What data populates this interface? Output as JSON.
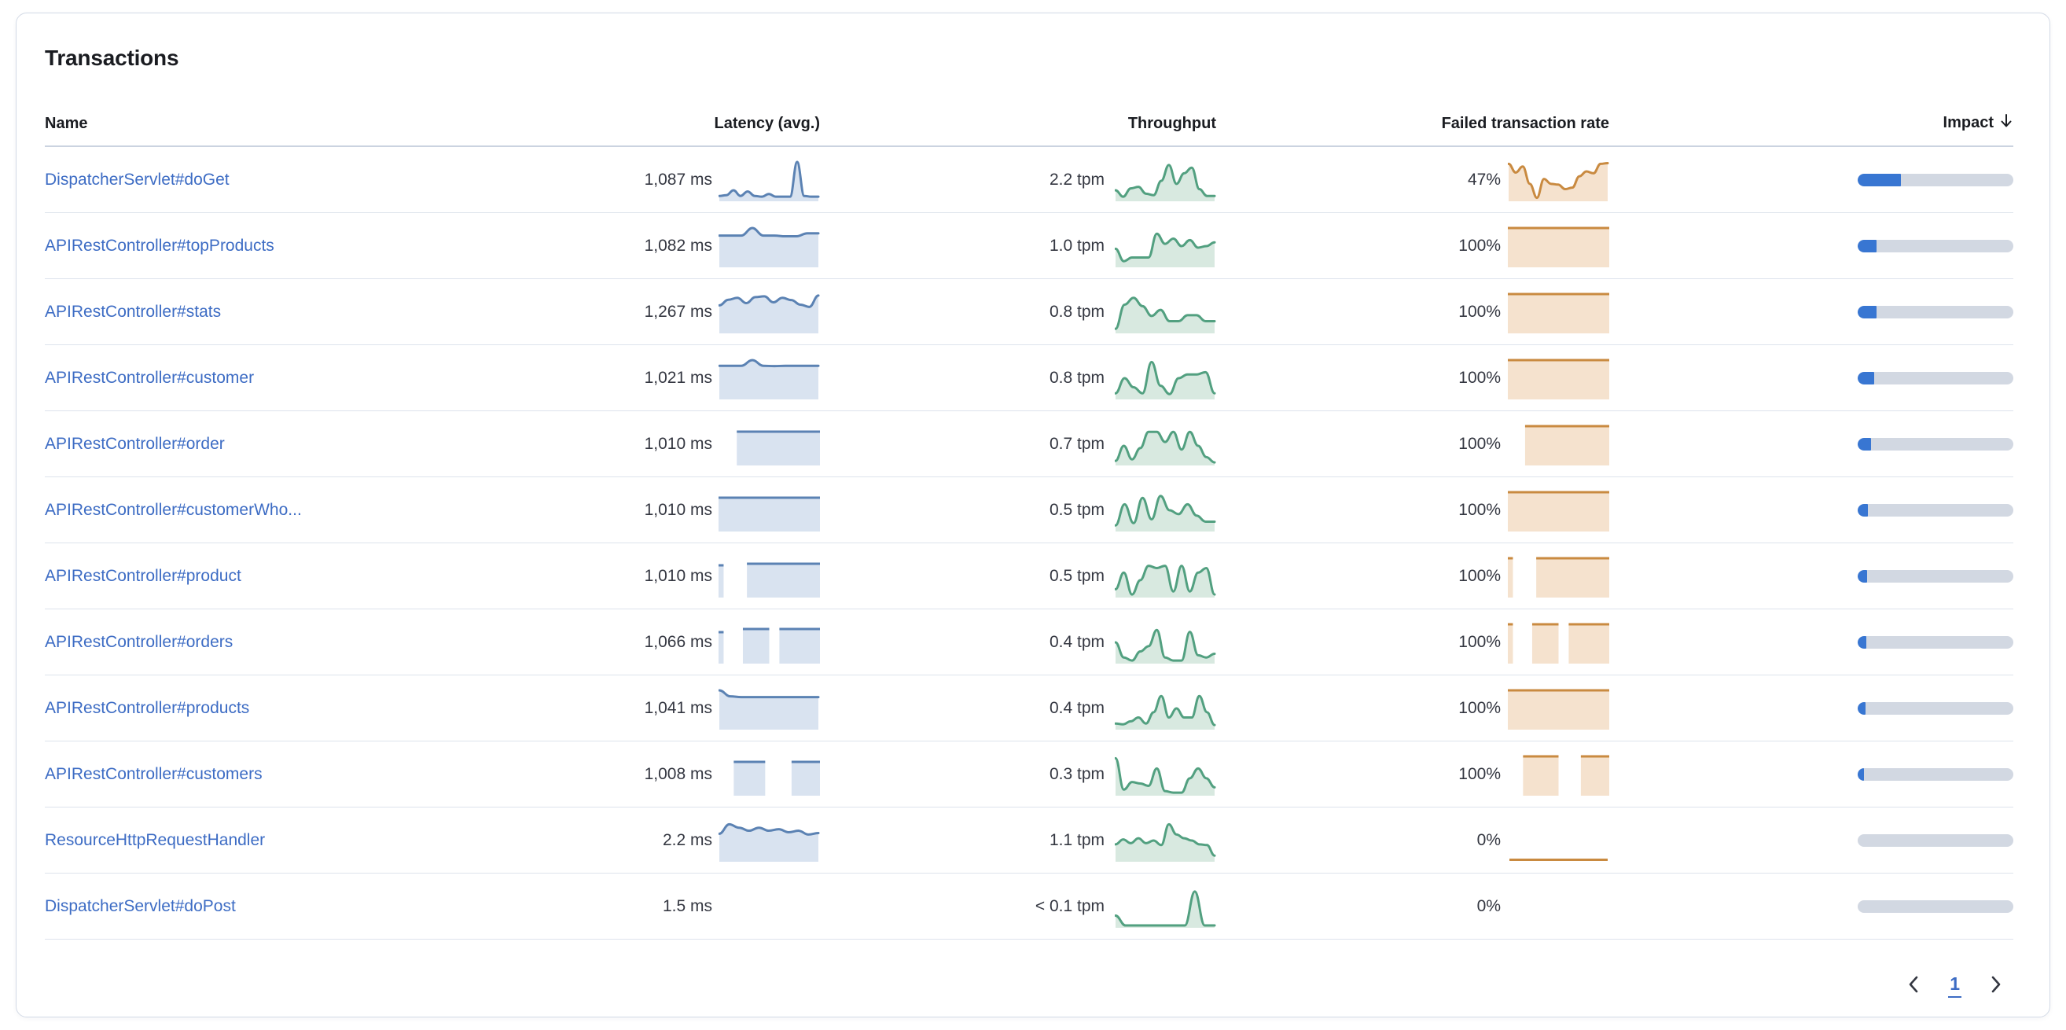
{
  "panel": {
    "title": "Transactions"
  },
  "table": {
    "columns": {
      "name": "Name",
      "latency": "Latency (avg.)",
      "throughput": "Throughput",
      "failed_rate": "Failed transaction rate",
      "impact": "Impact"
    },
    "sort": {
      "column": "Impact",
      "direction": "desc"
    },
    "rows": [
      {
        "name": "DispatcherServlet#doGet",
        "latency": "1,087 ms",
        "latency_spark": {
          "type": "line",
          "points": [
            0.1,
            0.12,
            0.25,
            0.1,
            0.22,
            0.1,
            0.08,
            0.15,
            0.08,
            0.08,
            0.08,
            1.0,
            0.1,
            0.08,
            0.08
          ]
        },
        "throughput": "2.2 tpm",
        "throughput_spark": {
          "type": "line",
          "points": [
            0.25,
            0.08,
            0.3,
            0.34,
            0.16,
            0.12,
            0.5,
            0.92,
            0.42,
            0.7,
            0.85,
            0.28,
            0.1,
            0.1
          ]
        },
        "failed_rate": "47%",
        "failed_spark": {
          "type": "line",
          "points": [
            0.95,
            0.72,
            0.88,
            0.42,
            0.05,
            0.55,
            0.42,
            0.4,
            0.28,
            0.32,
            0.62,
            0.75,
            0.7,
            0.95,
            0.97
          ]
        },
        "impact": 0.28
      },
      {
        "name": "APIRestController#topProducts",
        "latency": "1,082 ms",
        "latency_spark": {
          "type": "line",
          "points": [
            0.8,
            0.8,
            0.8,
            1.0,
            0.8,
            0.8,
            0.78,
            0.78,
            0.86,
            0.86
          ]
        },
        "throughput": "1.0 tpm",
        "throughput_spark": {
          "type": "line",
          "points": [
            0.45,
            0.12,
            0.22,
            0.22,
            0.22,
            0.85,
            0.58,
            0.72,
            0.52,
            0.68,
            0.48,
            0.52,
            0.62
          ]
        },
        "failed_rate": "100%",
        "failed_spark": {
          "type": "blocks",
          "segments": [
            [
              0,
              1,
              1
            ]
          ]
        },
        "impact": 0.12
      },
      {
        "name": "APIRestController#stats",
        "latency": "1,267 ms",
        "latency_spark": {
          "type": "line",
          "points": [
            0.7,
            0.85,
            0.9,
            0.76,
            0.92,
            0.94,
            0.78,
            0.9,
            0.84,
            0.72,
            0.66,
            0.96
          ]
        },
        "throughput": "0.8 tpm",
        "throughput_spark": {
          "type": "line",
          "points": [
            0.08,
            0.72,
            0.9,
            0.68,
            0.42,
            0.58,
            0.28,
            0.28,
            0.44,
            0.44,
            0.28,
            0.28
          ]
        },
        "failed_rate": "100%",
        "failed_spark": {
          "type": "blocks",
          "segments": [
            [
              0,
              1,
              1
            ]
          ]
        },
        "impact": 0.12
      },
      {
        "name": "APIRestController#customer",
        "latency": "1,021 ms",
        "latency_spark": {
          "type": "line",
          "points": [
            0.85,
            0.85,
            0.85,
            1.0,
            0.85,
            0.84,
            0.85,
            0.85,
            0.85,
            0.85
          ]
        },
        "throughput": "0.8 tpm",
        "throughput_spark": {
          "type": "line",
          "points": [
            0.12,
            0.52,
            0.28,
            0.12,
            0.95,
            0.32,
            0.1,
            0.52,
            0.62,
            0.62,
            0.68,
            0.12
          ]
        },
        "failed_rate": "100%",
        "failed_spark": {
          "type": "blocks",
          "segments": [
            [
              0,
              1,
              1
            ]
          ]
        },
        "impact": 0.105
      },
      {
        "name": "APIRestController#order",
        "latency": "1,010 ms",
        "latency_spark": {
          "type": "blocks",
          "segments": [
            [
              0.18,
              1,
              0.86
            ]
          ]
        },
        "throughput": "0.7 tpm",
        "throughput_spark": {
          "type": "line",
          "points": [
            0.08,
            0.48,
            0.12,
            0.42,
            0.85,
            0.85,
            0.58,
            0.85,
            0.38,
            0.85,
            0.48,
            0.18,
            0.04
          ]
        },
        "failed_rate": "100%",
        "failed_spark": {
          "type": "blocks",
          "segments": [
            [
              0.17,
              1,
              1
            ]
          ]
        },
        "impact": 0.085
      },
      {
        "name": "APIRestController#customerWho...",
        "latency": "1,010 ms",
        "latency_spark": {
          "type": "blocks",
          "segments": [
            [
              0,
              1,
              0.86
            ]
          ]
        },
        "throughput": "0.5 tpm",
        "throughput_spark": {
          "type": "line",
          "points": [
            0.12,
            0.68,
            0.18,
            0.85,
            0.28,
            0.9,
            0.52,
            0.42,
            0.68,
            0.38,
            0.22,
            0.22
          ]
        },
        "failed_rate": "100%",
        "failed_spark": {
          "type": "blocks",
          "segments": [
            [
              0,
              1,
              1
            ]
          ]
        },
        "impact": 0.065
      },
      {
        "name": "APIRestController#product",
        "latency": "1,010 ms",
        "latency_spark": {
          "type": "blocks",
          "segments": [
            [
              0,
              0.05,
              0.82
            ],
            [
              0.28,
              1,
              0.86
            ]
          ]
        },
        "throughput": "0.5 tpm",
        "throughput_spark": {
          "type": "line",
          "points": [
            0.18,
            0.62,
            0.04,
            0.42,
            0.8,
            0.74,
            0.8,
            0.12,
            0.8,
            0.12,
            0.62,
            0.74,
            0.04
          ]
        },
        "failed_rate": "100%",
        "failed_spark": {
          "type": "blocks",
          "segments": [
            [
              0,
              0.05,
              1
            ],
            [
              0.28,
              1,
              1
            ]
          ]
        },
        "impact": 0.06
      },
      {
        "name": "APIRestController#orders",
        "latency": "1,066 ms",
        "latency_spark": {
          "type": "blocks",
          "segments": [
            [
              0,
              0.05,
              0.8
            ],
            [
              0.24,
              0.5,
              0.88
            ],
            [
              0.6,
              1,
              0.88
            ]
          ]
        },
        "throughput": "0.4 tpm",
        "throughput_spark": {
          "type": "line",
          "points": [
            0.52,
            0.12,
            0.04,
            0.28,
            0.42,
            0.85,
            0.12,
            0.04,
            0.04,
            0.8,
            0.18,
            0.12,
            0.22
          ]
        },
        "failed_rate": "100%",
        "failed_spark": {
          "type": "blocks",
          "segments": [
            [
              0,
              0.05,
              1
            ],
            [
              0.24,
              0.5,
              1
            ],
            [
              0.6,
              1,
              1
            ]
          ]
        },
        "impact": 0.058
      },
      {
        "name": "APIRestController#products",
        "latency": "1,041 ms",
        "latency_spark": {
          "type": "line",
          "points": [
            1.0,
            0.84,
            0.82,
            0.82,
            0.82,
            0.82,
            0.82,
            0.82,
            0.82,
            0.82
          ]
        },
        "throughput": "0.4 tpm",
        "throughput_spark": {
          "type": "line",
          "points": [
            0.12,
            0.1,
            0.18,
            0.28,
            0.12,
            0.42,
            0.85,
            0.28,
            0.52,
            0.28,
            0.28,
            0.85,
            0.42,
            0.08
          ]
        },
        "failed_rate": "100%",
        "failed_spark": {
          "type": "blocks",
          "segments": [
            [
              0,
              1,
              1
            ]
          ]
        },
        "impact": 0.05
      },
      {
        "name": "APIRestController#customers",
        "latency": "1,008 ms",
        "latency_spark": {
          "type": "blocks",
          "segments": [
            [
              0.15,
              0.46,
              0.86
            ],
            [
              0.72,
              1,
              0.86
            ]
          ]
        },
        "throughput": "0.3 tpm",
        "throughput_spark": {
          "type": "line",
          "points": [
            0.95,
            0.12,
            0.32,
            0.28,
            0.22,
            0.68,
            0.08,
            0.04,
            0.04,
            0.42,
            0.68,
            0.42,
            0.18
          ]
        },
        "failed_rate": "100%",
        "failed_spark": {
          "type": "blocks",
          "segments": [
            [
              0.15,
              0.5,
              1
            ],
            [
              0.72,
              1,
              1
            ]
          ]
        },
        "impact": 0.042
      },
      {
        "name": "ResourceHttpRequestHandler",
        "latency": "2.2 ms",
        "latency_spark": {
          "type": "line",
          "points": [
            0.7,
            0.95,
            0.86,
            0.78,
            0.86,
            0.78,
            0.82,
            0.74,
            0.78,
            0.68,
            0.72
          ]
        },
        "throughput": "1.1 tpm",
        "throughput_spark": {
          "type": "line",
          "points": [
            0.42,
            0.55,
            0.45,
            0.58,
            0.45,
            0.52,
            0.4,
            0.95,
            0.68,
            0.58,
            0.52,
            0.42,
            0.4,
            0.12
          ]
        },
        "failed_rate": "0%",
        "failed_spark": {
          "type": "baseline"
        },
        "impact": 0
      },
      {
        "name": "DispatcherServlet#doPost",
        "latency": "1.5 ms",
        "latency_spark": {
          "type": "none"
        },
        "throughput": "< 0.1 tpm",
        "throughput_spark": {
          "type": "line",
          "points": [
            0.28,
            0.02,
            0.02,
            0.02,
            0.02,
            0.02,
            0.02,
            0.02,
            0.92,
            0.02,
            0.02
          ]
        },
        "failed_rate": "0%",
        "failed_spark": {
          "type": "none"
        },
        "impact": 0
      }
    ]
  },
  "pagination": {
    "current_page": "1"
  },
  "colors": {
    "link": "#3D6CC4",
    "text": "#343741",
    "heading": "#1A1C21",
    "latency_line": "#5B82B3",
    "latency_fill": "#D9E3F0",
    "throughput_line": "#52A080",
    "throughput_fill": "#D8E9E0",
    "failed_line": "#C98A40",
    "failed_fill": "#F5E2CE",
    "impact_fill": "#3876D2",
    "impact_track": "#D2D8E2"
  }
}
